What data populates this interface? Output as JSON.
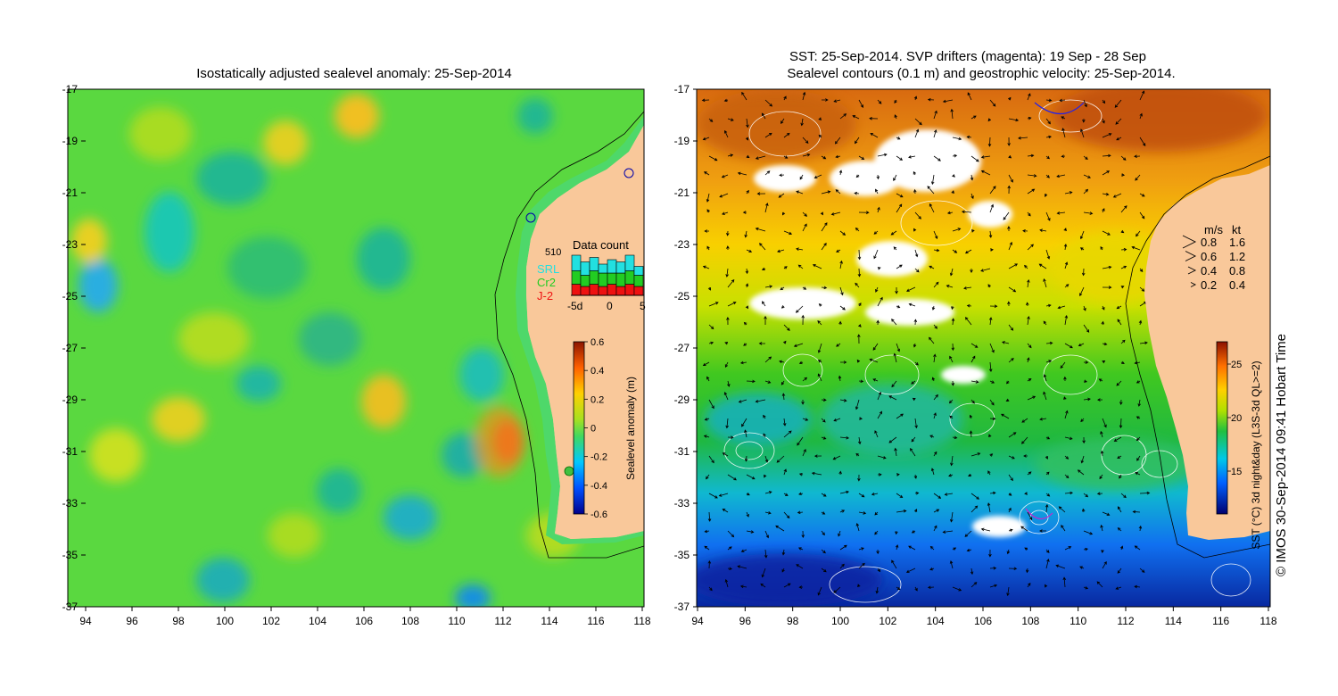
{
  "left_map": {
    "title": "Isostatically adjusted sealevel anomaly: 25-Sep-2014",
    "x_ticks": [
      "94",
      "96",
      "98",
      "100",
      "102",
      "104",
      "106",
      "108",
      "110",
      "112",
      "114",
      "116",
      "118"
    ],
    "y_ticks": [
      "-17",
      "-19",
      "-21",
      "-23",
      "-25",
      "-27",
      "-29",
      "-31",
      "-33",
      "-35",
      "-37"
    ],
    "colorbar": {
      "label": "Sealevel anomaly (m)",
      "ticks": [
        "0.6",
        "0.4",
        "0.2",
        "0",
        "-0.2",
        "-0.4",
        "-0.6"
      ]
    },
    "data_count": {
      "title": "Data count",
      "max_label": "510",
      "legend": [
        {
          "name": "SRL",
          "color": "#22e0e0"
        },
        {
          "name": "Cr2",
          "color": "#22cc22"
        },
        {
          "name": "J-2",
          "color": "#ee1111"
        }
      ],
      "x_ticks": [
        "-5d",
        "0",
        "5"
      ],
      "bars": [
        {
          "srl": 0.35,
          "cr2": 0.3,
          "j2": 0.25
        },
        {
          "srl": 0.3,
          "cr2": 0.25,
          "j2": 0.2
        },
        {
          "srl": 0.3,
          "cr2": 0.3,
          "j2": 0.25
        },
        {
          "srl": 0.2,
          "cr2": 0.3,
          "j2": 0.2
        },
        {
          "srl": 0.3,
          "cr2": 0.25,
          "j2": 0.25
        },
        {
          "srl": 0.25,
          "cr2": 0.3,
          "j2": 0.2
        },
        {
          "srl": 0.35,
          "cr2": 0.3,
          "j2": 0.25
        },
        {
          "srl": 0.2,
          "cr2": 0.25,
          "j2": 0.2
        }
      ]
    }
  },
  "right_map": {
    "title_line1": "SST: 25-Sep-2014. SVP drifters (magenta): 19 Sep - 28 Sep",
    "title_line2": "Sealevel contours (0.1 m) and geostrophic velocity: 25-Sep-2014.",
    "x_ticks": [
      "94",
      "96",
      "98",
      "100",
      "102",
      "104",
      "106",
      "108",
      "110",
      "112",
      "114",
      "116",
      "118"
    ],
    "y_ticks": [
      "-17",
      "-19",
      "-21",
      "-23",
      "-25",
      "-27",
      "-29",
      "-31",
      "-33",
      "-35",
      "-37"
    ],
    "velocity_legend": {
      "header_ms": "m/s",
      "header_kt": "kt",
      "rows": [
        {
          "ms": "0.8",
          "kt": "1.6"
        },
        {
          "ms": "0.6",
          "kt": "1.2"
        },
        {
          "ms": "0.4",
          "kt": "0.8"
        },
        {
          "ms": "0.2",
          "kt": "0.4"
        }
      ]
    },
    "colorbar": {
      "label": "SST (°C) 3d night&day (L3S-3d QL>=2)",
      "ticks": [
        "25",
        "20",
        "15"
      ]
    }
  },
  "credit": "© IMOS 30-Sep-2014 09:41 Hobart Time",
  "colors": {
    "land": "#f9c89a",
    "ocean_green": "#3fcf3f",
    "coast": "#000000"
  }
}
